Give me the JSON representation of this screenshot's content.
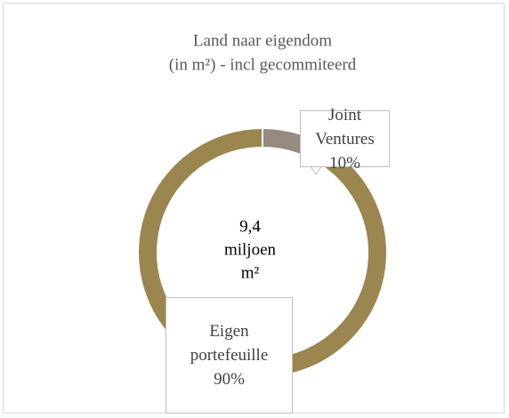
{
  "chart_data": {
    "type": "donut",
    "title": "Land naar eigendom",
    "subtitle": "(in m²) - incl gecommiteerd",
    "annotations": [
      "9,4",
      "miljoen",
      "m²"
    ],
    "categories": [
      "Joint Ventures",
      "Eigen portefeuille"
    ],
    "values": [
      10,
      90
    ],
    "value_labels": [
      "10%",
      "90%"
    ],
    "colors": [
      "#958b7f",
      "#9b8650"
    ]
  }
}
